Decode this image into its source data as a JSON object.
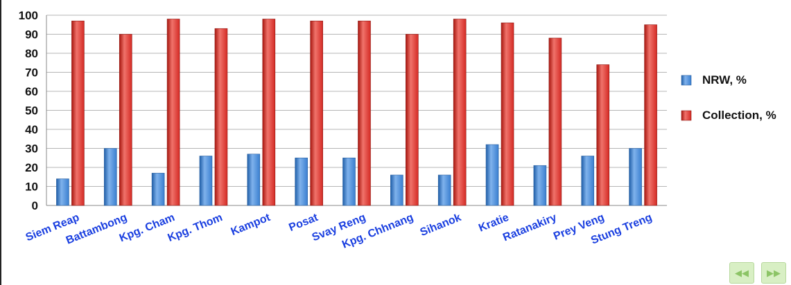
{
  "chart_data": {
    "type": "bar",
    "title": "",
    "xlabel": "",
    "ylabel": "",
    "ylim": [
      0,
      100
    ],
    "yticks": [
      0,
      10,
      20,
      30,
      40,
      50,
      60,
      70,
      80,
      90,
      100
    ],
    "grid": true,
    "legend_position": "right",
    "categories": [
      "Siem Reap",
      "Battambong",
      "Kpg. Cham",
      "Kpg. Thom",
      "Kampot",
      "Posat",
      "Svay Reng",
      "Kpg. Chhnang",
      "Sihanok",
      "Kratie",
      "Ratanakiry",
      "Prey Veng",
      "Stung Treng"
    ],
    "series": [
      {
        "name": "NRW, %",
        "color": "#3a7fd0",
        "values": [
          14,
          30,
          17,
          26,
          27,
          25,
          25,
          16,
          16,
          32,
          21,
          26,
          30
        ]
      },
      {
        "name": "Collection, %",
        "color": "#d42a24",
        "values": [
          97,
          90,
          98,
          93,
          98,
          97,
          97,
          90,
          98,
          96,
          88,
          74,
          95
        ]
      }
    ]
  },
  "nav": {
    "prev_icon": "rewind-icon",
    "next_icon": "fast-forward-icon",
    "prev_glyph": "◀◀",
    "next_glyph": "▶▶"
  }
}
